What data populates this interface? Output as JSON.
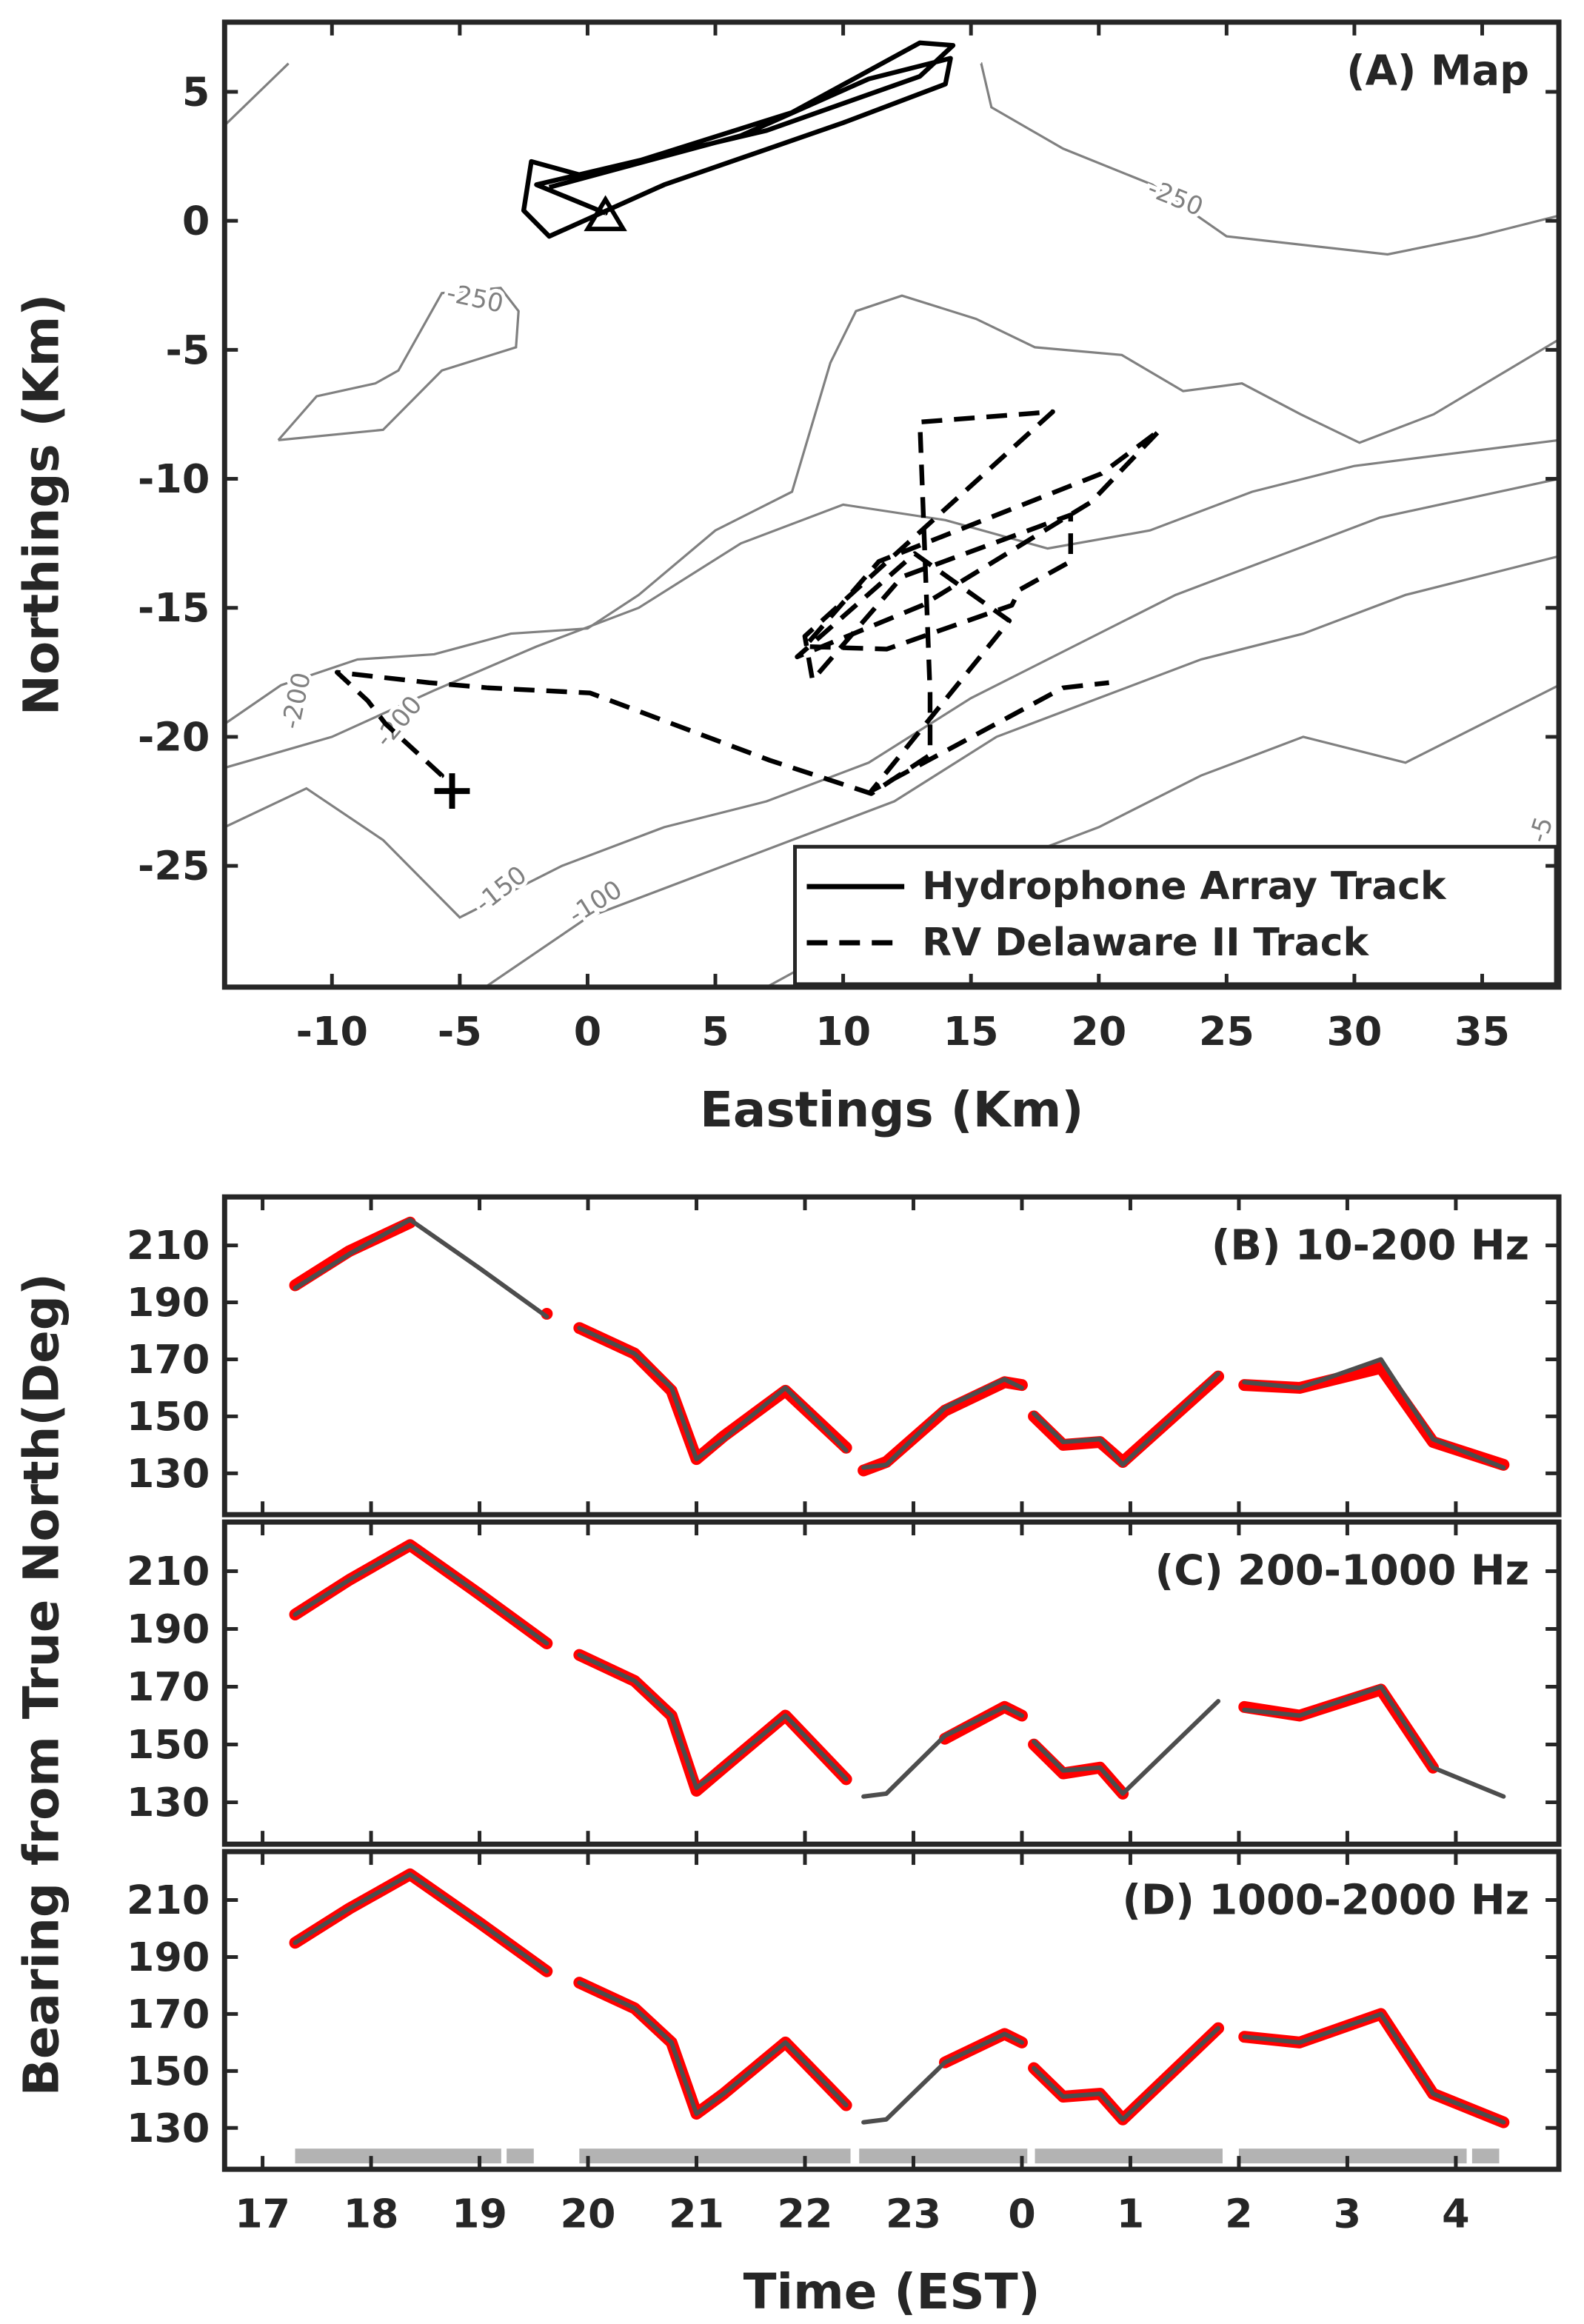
{
  "chart_data": [
    {
      "type": "map",
      "title": "(A) Map",
      "xlabel": "Eastings (Km)",
      "ylabel": "Northings (Km)",
      "xlim": [
        -14.2,
        38
      ],
      "ylim": [
        -29.7,
        7.7
      ],
      "xticks": [
        -10,
        -5,
        0,
        5,
        10,
        15,
        20,
        25,
        30,
        35
      ],
      "yticks": [
        5,
        0,
        -5,
        -10,
        -15,
        -20,
        -25
      ],
      "grid": false,
      "legend": "lower right",
      "series": [
        {
          "name": "Hydrophone Array Track",
          "color": "#000000",
          "style": "solid",
          "x": [
            0.7,
            -2,
            7,
            13,
            14.3,
            13,
            8,
            0,
            -2.2,
            -2.5,
            -1.5,
            3,
            10,
            14,
            14.2,
            11,
            6,
            -1.5
          ],
          "y": [
            0.3,
            1.4,
            3.5,
            5.6,
            6.8,
            6.9,
            4.2,
            1.7,
            2.3,
            0.4,
            -0.6,
            1.4,
            3.8,
            5.3,
            6.3,
            5.5,
            3.3,
            1.3
          ]
        },
        {
          "name": "RV Delaware II Track",
          "color": "#000000",
          "style": "dashed",
          "x": [
            -5.7,
            -7.9,
            -8.6,
            -9.8,
            -6.2,
            -3.9,
            0.1,
            7.1,
            11.1,
            13.4,
            13.4,
            13,
            18.2,
            8.5,
            8.8,
            12.3,
            18.9,
            18.9,
            16.9,
            16.6,
            11.7,
            8.5,
            11.4,
            20.1,
            22.4,
            19.7,
            13.1,
            8.2,
            10.5,
            12.8,
            16.5,
            11.1,
            18.6,
            20.4
          ],
          "y": [
            -21.5,
            -19.5,
            -18.6,
            -17.5,
            -17.9,
            -18.1,
            -18.3,
            -20.9,
            -22.2,
            -20.7,
            -18.3,
            -7.8,
            -7.4,
            -16.1,
            -17.8,
            -13.8,
            -11.4,
            -13.2,
            -14.3,
            -14.9,
            -16.6,
            -16.5,
            -13.2,
            -9.8,
            -8.1,
            -10.9,
            -14.9,
            -16.9,
            -14.9,
            -12.9,
            -15.5,
            -22.1,
            -18.1,
            -17.9
          ]
        }
      ],
      "contour_color": "#808080",
      "contours": [
        {
          "x": [
            -14.2,
            -11.7
          ],
          "y": [
            3.7,
            6.1
          ]
        },
        {
          "label": "-250",
          "x": [
            15.4,
            15.8,
            18.6,
            22.1,
            25,
            31.3,
            34.8,
            38
          ],
          "y": [
            6.1,
            4.4,
            2.8,
            1.4,
            -0.6,
            -1.3,
            -0.6,
            0.2
          ]
        },
        {
          "label": "-250",
          "x": [
            -12.1,
            -10.6,
            -8.3,
            -7.4,
            -5.7,
            -3.4,
            -2.7,
            -2.8,
            -5.7,
            -8,
            -12.1
          ],
          "y": [
            -8.5,
            -6.8,
            -6.3,
            -5.8,
            -2.8,
            -2.6,
            -3.5,
            -4.9,
            -5.8,
            -8.1,
            -8.5
          ]
        },
        {
          "label": "-200",
          "x": [
            -14.2,
            -12,
            -9,
            -6,
            -3,
            0,
            2,
            5,
            8,
            9.5,
            10.5,
            12.3,
            15.2,
            17.5,
            20.9,
            23.3,
            25.6,
            27.9,
            30.2,
            33.1,
            38
          ],
          "y": [
            -19.5,
            -18,
            -17,
            -16.8,
            -16,
            -15.8,
            -14.5,
            -12,
            -10.5,
            -5.5,
            -3.5,
            -2.9,
            -3.8,
            -4.9,
            -5.2,
            -6.6,
            -6.3,
            -7.5,
            -8.6,
            -7.5,
            -4.6
          ]
        },
        {
          "label": "-200",
          "x": [
            -14.2,
            -10,
            -6,
            -2,
            2,
            6,
            10,
            14,
            18,
            22,
            26,
            30,
            34,
            38
          ],
          "y": [
            -21.2,
            -20,
            -18.2,
            -16.5,
            -15,
            -12.5,
            -11,
            -11.6,
            -12.7,
            -12,
            -10.5,
            -9.5,
            -9,
            -8.5
          ]
        },
        {
          "label": "-150",
          "x": [
            -14.2,
            -11,
            -8,
            -5,
            -1,
            3,
            7,
            11,
            15,
            19,
            23,
            27,
            31,
            38
          ],
          "y": [
            -23.5,
            -22,
            -24,
            -27,
            -25,
            -23.5,
            -22.5,
            -21,
            -18.5,
            -16.5,
            -14.5,
            -13,
            -11.5,
            -10
          ]
        },
        {
          "label": "-100",
          "x": [
            -4,
            0,
            4,
            8,
            12,
            16,
            20,
            24,
            28,
            32,
            38
          ],
          "y": [
            -29.7,
            -27,
            -25.5,
            -24,
            -22.5,
            -20,
            -18.5,
            -17,
            -16,
            -14.5,
            -13
          ]
        },
        {
          "label": "-5",
          "x": [
            7,
            12,
            16,
            20,
            24,
            28,
            32,
            35,
            38
          ],
          "y": [
            -29.7,
            -27,
            -25,
            -23.5,
            -21.5,
            -20,
            -21,
            -19.5,
            -18
          ]
        }
      ],
      "markers": [
        {
          "symbol": "triangle",
          "x": 0.7,
          "y": 0.2
        },
        {
          "symbol": "plus",
          "x": -5.3,
          "y": -22.1
        }
      ]
    },
    {
      "type": "line",
      "title": "(B) 10-200 Hz",
      "xlim": [
        16.65,
        28.95
      ],
      "ylim": [
        115.5,
        227
      ],
      "yticks": [
        130,
        150,
        170,
        190,
        210
      ],
      "grid": false,
      "x": [
        17.3,
        17.8,
        18.36,
        19.0,
        19.62,
        19.77,
        19.92,
        20.43,
        20.77,
        21.0,
        21.25,
        21.82,
        22.38,
        22.46,
        22.54,
        22.75,
        23.29,
        23.84,
        24.0,
        24.06,
        24.11,
        24.38,
        24.72,
        24.93,
        25.81,
        25.93,
        26.05,
        26.56,
        27.31,
        27.79,
        28.44
      ],
      "series": [
        {
          "color": "#ff0000",
          "style": "band",
          "values": [
            196,
            208,
            218,
            null,
            186,
            null,
            181,
            172,
            159,
            135,
            143,
            159,
            139,
            null,
            131,
            134,
            152,
            162,
            161,
            null,
            150,
            140,
            141,
            134,
            164,
            null,
            161,
            160,
            167,
            141,
            133
          ]
        },
        {
          "color": "#4d4d4d",
          "style": "line",
          "values": [
            195,
            207,
            219,
            202,
            185,
            null,
            181,
            172,
            160,
            135,
            142,
            160,
            138,
            null,
            132,
            133,
            153,
            163,
            160,
            null,
            151,
            141,
            142,
            133,
            165,
            null,
            162,
            160,
            170,
            142,
            132
          ]
        }
      ]
    },
    {
      "type": "line",
      "title": "(C) 200-1000 Hz",
      "ylabel": "Bearing from True North(Deg)",
      "xlim": [
        16.65,
        28.95
      ],
      "ylim": [
        115.5,
        227
      ],
      "yticks": [
        130,
        150,
        170,
        190,
        210
      ],
      "grid": false,
      "x": [
        17.3,
        17.8,
        18.36,
        19.0,
        19.62,
        19.77,
        19.92,
        20.43,
        20.77,
        21.0,
        21.25,
        21.82,
        22.38,
        22.46,
        22.54,
        22.75,
        23.29,
        23.84,
        24.0,
        24.06,
        24.11,
        24.38,
        24.72,
        24.93,
        25.81,
        25.93,
        26.05,
        26.56,
        27.31,
        27.79,
        28.44
      ],
      "series": [
        {
          "color": "#ff0000",
          "style": "band",
          "values": [
            195,
            207,
            219,
            202,
            185,
            null,
            181,
            172,
            160,
            134,
            142,
            160,
            138,
            null,
            null,
            null,
            152,
            163,
            160,
            null,
            150,
            140,
            142,
            133,
            null,
            null,
            163,
            160,
            169,
            142,
            null
          ]
        },
        {
          "color": "#4d4d4d",
          "style": "line",
          "values": [
            195,
            207,
            219,
            202,
            185,
            null,
            181,
            172,
            160,
            135,
            142,
            160,
            138,
            null,
            132,
            133,
            153,
            163,
            160,
            null,
            151,
            141,
            142,
            133,
            165,
            null,
            162,
            160,
            170,
            142,
            132
          ]
        }
      ]
    },
    {
      "type": "line",
      "title": "(D) 1000-2000 Hz",
      "xlabel": "Time (EST)",
      "xlim": [
        16.65,
        28.95
      ],
      "ylim": [
        115.5,
        227
      ],
      "xticks": [
        17,
        18,
        19,
        20,
        21,
        22,
        23,
        {
          "value": 24,
          "label": "0"
        },
        {
          "value": 25,
          "label": "1"
        },
        {
          "value": 26,
          "label": "2"
        },
        {
          "value": 27,
          "label": "3"
        },
        {
          "value": 28,
          "label": "4"
        }
      ],
      "yticks": [
        130,
        150,
        170,
        190,
        210
      ],
      "grid": false,
      "x": [
        17.3,
        17.8,
        18.36,
        19.0,
        19.62,
        19.77,
        19.92,
        20.43,
        20.77,
        21.0,
        21.25,
        21.82,
        22.38,
        22.46,
        22.54,
        22.75,
        23.29,
        23.84,
        24.0,
        24.06,
        24.11,
        24.38,
        24.72,
        24.93,
        25.81,
        25.93,
        26.05,
        26.56,
        27.31,
        27.79,
        28.44
      ],
      "series": [
        {
          "color": "#ff0000",
          "style": "band",
          "values": [
            195,
            207,
            219,
            202,
            185,
            null,
            181,
            172,
            160,
            135,
            142,
            160,
            138,
            null,
            null,
            null,
            153,
            163,
            160,
            null,
            151,
            141,
            142,
            133,
            165,
            null,
            162,
            160,
            170,
            142,
            132
          ]
        },
        {
          "color": "#4d4d4d",
          "style": "line",
          "values": [
            195,
            207,
            219,
            202,
            185,
            null,
            181,
            172,
            160,
            135,
            142,
            160,
            138,
            null,
            132,
            133,
            153,
            163,
            160,
            null,
            151,
            141,
            142,
            133,
            165,
            null,
            162,
            160,
            170,
            142,
            132
          ]
        }
      ],
      "interval_color": "#b3b3b3",
      "intervals": [
        [
          17.3,
          19.2
        ],
        [
          19.25,
          19.5
        ],
        [
          19.92,
          22.42
        ],
        [
          22.5,
          24.05
        ],
        [
          24.12,
          25.85
        ],
        [
          26.0,
          28.1
        ],
        [
          28.15,
          28.4
        ]
      ]
    }
  ]
}
